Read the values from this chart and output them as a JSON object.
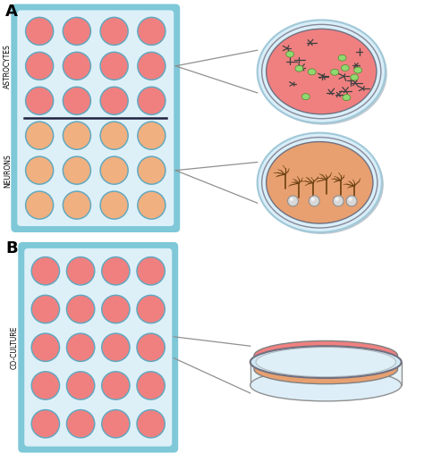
{
  "bg_color": "#ffffff",
  "plate_outer_color": "#7ec8d8",
  "plate_inner_bg": "#ddf0f8",
  "well_color_pink": "#f08080",
  "well_color_orange": "#f0b080",
  "well_border": "#60a8c0",
  "astrocyte_bg": "#f08080",
  "neuron_bg": "#e8a070",
  "green_cell_color": "#90d870",
  "dark_astro_color": "#404040",
  "neuron_tree_color": "#6a4010",
  "label_A": "A",
  "label_B": "B",
  "label_astrocytes": "ASTROCYTES",
  "label_neurons": "NEURONS",
  "label_coculture": "CO-CULTURE",
  "divider_color": "#202040",
  "arrow_color": "#909090",
  "glass_rim_color": "#a0c8d8",
  "glass_fill": "#d8eef8"
}
